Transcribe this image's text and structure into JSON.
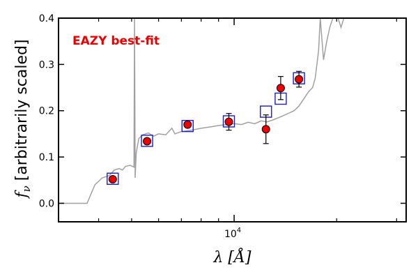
{
  "chart_data": {
    "type": "scatter",
    "annotation": "EAZY best-fit",
    "annotation_color": "#ee0000",
    "xlabel": "λ [Å]",
    "ylabel_symbol": "f",
    "ylabel_subscript": "ν",
    "ylabel_text": "[arbitrarily scaled]",
    "x_scale": "log",
    "xlim": [
      3050,
      32000
    ],
    "ylim": [
      -0.04,
      0.4
    ],
    "x_ticks": [
      {
        "value": 10000,
        "base": "10",
        "exp": "4"
      }
    ],
    "x_minor_ticks": [
      4000,
      5000,
      6000,
      7000,
      8000,
      9000,
      20000,
      30000
    ],
    "y_ticks": [
      {
        "value": 0.0,
        "label": "0.0"
      },
      {
        "value": 0.1,
        "label": "0.1"
      },
      {
        "value": 0.2,
        "label": "0.2"
      },
      {
        "value": 0.3,
        "label": "0.3"
      },
      {
        "value": 0.4,
        "label": "0.4"
      }
    ],
    "grid": false,
    "series": [
      {
        "kind": "template_line",
        "color": "#a0a0a0",
        "points": [
          [
            3050,
            0.0
          ],
          [
            3700,
            0.0
          ],
          [
            3900,
            0.04
          ],
          [
            4100,
            0.055
          ],
          [
            4300,
            0.06
          ],
          [
            4450,
            0.072
          ],
          [
            4600,
            0.075
          ],
          [
            4700,
            0.072
          ],
          [
            4800,
            0.08
          ],
          [
            4950,
            0.082
          ],
          [
            5080,
            0.078
          ],
          [
            5100,
            0.4
          ],
          [
            5120,
            0.055
          ],
          [
            5160,
            0.11
          ],
          [
            5250,
            0.14
          ],
          [
            5400,
            0.148
          ],
          [
            5600,
            0.152
          ],
          [
            5800,
            0.145
          ],
          [
            6000,
            0.15
          ],
          [
            6300,
            0.148
          ],
          [
            6563,
            0.162
          ],
          [
            6700,
            0.15
          ],
          [
            7000,
            0.155
          ],
          [
            7500,
            0.158
          ],
          [
            8000,
            0.162
          ],
          [
            8500,
            0.165
          ],
          [
            9000,
            0.168
          ],
          [
            9500,
            0.17
          ],
          [
            10000,
            0.172
          ],
          [
            10500,
            0.17
          ],
          [
            11000,
            0.175
          ],
          [
            11500,
            0.172
          ],
          [
            12000,
            0.178
          ],
          [
            12500,
            0.176
          ],
          [
            13000,
            0.18
          ],
          [
            13500,
            0.185
          ],
          [
            14000,
            0.19
          ],
          [
            14500,
            0.195
          ],
          [
            15000,
            0.2
          ],
          [
            15500,
            0.21
          ],
          [
            16000,
            0.225
          ],
          [
            16500,
            0.24
          ],
          [
            17000,
            0.25
          ],
          [
            17300,
            0.27
          ],
          [
            17500,
            0.3
          ],
          [
            17700,
            0.33
          ],
          [
            17900,
            0.4
          ],
          [
            18300,
            0.31
          ],
          [
            18700,
            0.35
          ],
          [
            19100,
            0.38
          ],
          [
            19500,
            0.4
          ],
          [
            20200,
            0.4
          ],
          [
            20600,
            0.38
          ],
          [
            21000,
            0.4
          ]
        ]
      },
      {
        "kind": "model_squares",
        "name": "",
        "color": "#1a1ad9",
        "points": [
          [
            4400,
            0.053
          ],
          [
            5550,
            0.135
          ],
          [
            7300,
            0.167
          ],
          [
            9650,
            0.177
          ],
          [
            12400,
            0.198
          ],
          [
            13700,
            0.226
          ],
          [
            15500,
            0.27
          ]
        ]
      },
      {
        "kind": "observed_points",
        "name": "",
        "color": "#ee0000",
        "edge": "#000000",
        "points": [
          {
            "x": 4400,
            "y": 0.052,
            "err": 0.006
          },
          {
            "x": 5550,
            "y": 0.134,
            "err": 0.006
          },
          {
            "x": 7300,
            "y": 0.17,
            "err": 0.005
          },
          {
            "x": 9650,
            "y": 0.176,
            "err": 0.018
          },
          {
            "x": 12400,
            "y": 0.16,
            "err": 0.031
          },
          {
            "x": 13700,
            "y": 0.249,
            "err": 0.025
          },
          {
            "x": 15500,
            "y": 0.268,
            "err": 0.017
          }
        ]
      }
    ]
  }
}
